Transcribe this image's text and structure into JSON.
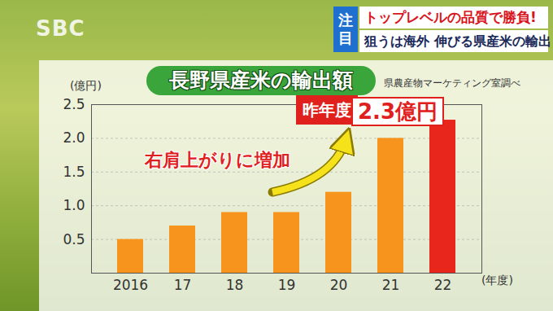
{
  "header": {
    "logo": "SBC",
    "badge": "注目",
    "headline": "トップレベルの品質で勝負!",
    "subheadline": "狙うは海外 伸びる県産米の輸出"
  },
  "chart_data": {
    "type": "bar",
    "title": "長野県産米の輸出額",
    "source": "県農産物マーケティング室調べ",
    "y_label": "(億円)",
    "x_label": "(年度)",
    "categories": [
      "2016",
      "17",
      "18",
      "19",
      "20",
      "21",
      "22"
    ],
    "values": [
      0.5,
      0.7,
      0.9,
      0.9,
      1.2,
      2.0,
      2.27
    ],
    "colors": [
      "#f7941d",
      "#f7941d",
      "#f7941d",
      "#f7941d",
      "#f7941d",
      "#f7941d",
      "#e8261c"
    ],
    "ylim": [
      0,
      2.5
    ],
    "yticks": [
      0.5,
      {
        "value": 1,
        "label": "1.0"
      },
      1.5,
      {
        "value": 2,
        "label": "2.0"
      },
      2.5
    ],
    "grid": true,
    "annotations": [
      "昨年度",
      "2.3億円",
      "右肩上がりに増加"
    ]
  }
}
